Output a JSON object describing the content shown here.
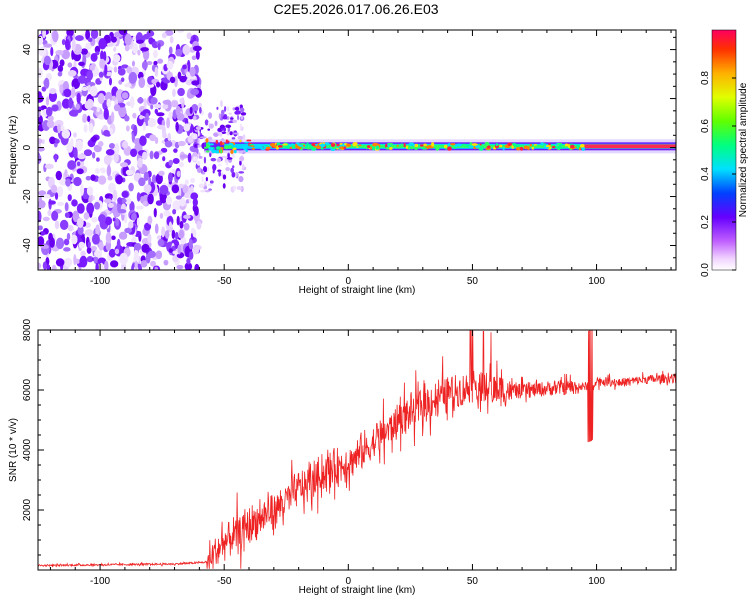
{
  "title": "C2E5.2026.017.06.26.E03",
  "chart_data": [
    {
      "type": "heatmap",
      "xlabel": "Height of straight line (km)",
      "ylabel": "Frequency (Hz)",
      "xlim": [
        -125,
        132
      ],
      "ylim": [
        -50,
        48
      ],
      "x_ticks": [
        -100,
        -50,
        0,
        50,
        100
      ],
      "y_ticks": [
        -40,
        -20,
        0,
        20,
        40
      ],
      "colorbar": {
        "label": "Normalized spectral amplitude",
        "range": [
          0,
          1
        ],
        "ticks": [
          0.0,
          0.2,
          0.4,
          0.6,
          0.8
        ]
      },
      "noise_region_x": [
        -125,
        -60
      ],
      "signal_line_freq": 0.5
    },
    {
      "type": "line",
      "xlabel": "Height of straight line (km)",
      "ylabel": "SNR (10 * v/v)",
      "xlim": [
        -125,
        132
      ],
      "ylim": [
        0,
        8000
      ],
      "x_ticks": [
        -100,
        -50,
        0,
        50,
        100
      ],
      "y_ticks": [
        2000,
        4000,
        6000,
        8000
      ],
      "color": "#ee2222",
      "envelope": {
        "x": [
          -125,
          -70,
          -57,
          -50,
          -40,
          -30,
          -20,
          -10,
          0,
          10,
          20,
          30,
          40,
          50,
          60,
          70,
          80,
          90,
          95,
          100,
          110,
          120,
          132
        ],
        "y": [
          150,
          200,
          260,
          900,
          1500,
          2000,
          2700,
          3200,
          3600,
          4200,
          5000,
          5500,
          5900,
          6100,
          6000,
          5950,
          6050,
          6100,
          6100,
          6300,
          6250,
          6350,
          6400
        ]
      }
    }
  ]
}
